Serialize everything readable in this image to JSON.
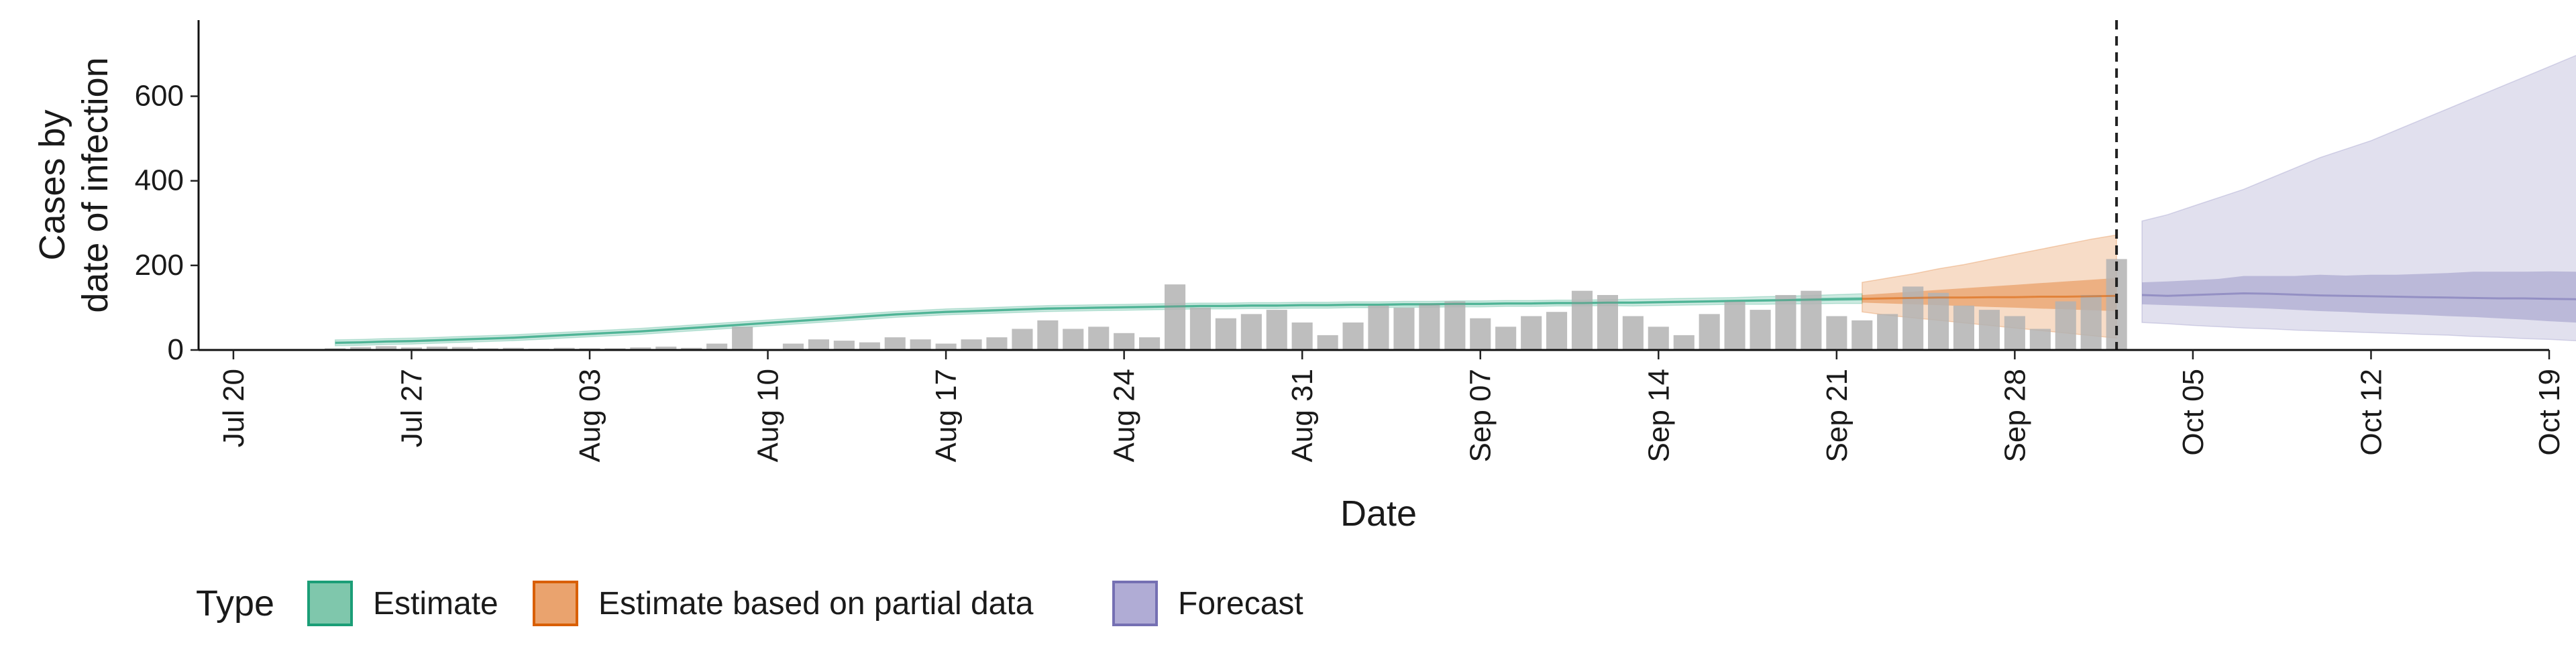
{
  "chart_data": {
    "type": "bar",
    "xlabel": "Date",
    "ylabel_lines": [
      "Cases by",
      "date of infection"
    ],
    "ylim": [
      0,
      780
    ],
    "y_ticks": [
      0,
      200,
      400,
      600
    ],
    "x_ticks": [
      {
        "date": "2020-07-20",
        "label": "Jul 20"
      },
      {
        "date": "2020-07-27",
        "label": "Jul 27"
      },
      {
        "date": "2020-08-03",
        "label": "Aug 03"
      },
      {
        "date": "2020-08-10",
        "label": "Aug 10"
      },
      {
        "date": "2020-08-17",
        "label": "Aug 17"
      },
      {
        "date": "2020-08-24",
        "label": "Aug 24"
      },
      {
        "date": "2020-08-31",
        "label": "Aug 31"
      },
      {
        "date": "2020-09-07",
        "label": "Sep 07"
      },
      {
        "date": "2020-09-14",
        "label": "Sep 14"
      },
      {
        "date": "2020-09-21",
        "label": "Sep 21"
      },
      {
        "date": "2020-09-28",
        "label": "Sep 28"
      },
      {
        "date": "2020-10-05",
        "label": "Oct 05"
      },
      {
        "date": "2020-10-12",
        "label": "Oct 12"
      },
      {
        "date": "2020-10-19",
        "label": "Oct 19"
      }
    ],
    "xlim": [
      "2020-07-19",
      "2020-10-19"
    ],
    "vline_date": "2020-10-02",
    "legend": {
      "title": "Type",
      "position": "bottom",
      "items": [
        {
          "label": "Estimate",
          "fill": "#7fc7ac",
          "stroke": "#1b9e77"
        },
        {
          "label": "Estimate based on partial data",
          "fill": "#eaa36e",
          "stroke": "#d95f02"
        },
        {
          "label": "Forecast",
          "fill": "#b0acd5",
          "stroke": "#7570b3"
        }
      ]
    },
    "reported_cases": {
      "start": "2020-07-24",
      "color": "#b3b3b3",
      "values": [
        4,
        7,
        9,
        6,
        8,
        7,
        4,
        5,
        3,
        5,
        4,
        4,
        6,
        8,
        5,
        15,
        55,
        2,
        15,
        25,
        22,
        18,
        30,
        25,
        15,
        25,
        30,
        50,
        70,
        50,
        55,
        40,
        30,
        155,
        100,
        75,
        85,
        95,
        65,
        35,
        65,
        105,
        100,
        110,
        115,
        75,
        55,
        80,
        90,
        140,
        130,
        80,
        55,
        35,
        85,
        115,
        95,
        130,
        140,
        80,
        70,
        85,
        150,
        135,
        105,
        95,
        80,
        50,
        115,
        130,
        215
      ]
    },
    "series": [
      {
        "name": "Estimate",
        "start": "2020-07-24",
        "color": "#1b9e77",
        "median": [
          17,
          18,
          20,
          21,
          23,
          25,
          27,
          29,
          32,
          35,
          38,
          41,
          44,
          48,
          52,
          56,
          60,
          64,
          68,
          72,
          76,
          80,
          84,
          87,
          90,
          92,
          94,
          96,
          98,
          99,
          100,
          101,
          102,
          103,
          104,
          104,
          105,
          105,
          106,
          106,
          107,
          107,
          108,
          108,
          109,
          109,
          110,
          110,
          111,
          111,
          112,
          112,
          113,
          114,
          115,
          116,
          117,
          118,
          119,
          120,
          121
        ],
        "inner": [
          [
            14,
            20
          ],
          [
            15,
            21
          ],
          [
            17,
            23
          ],
          [
            18,
            24
          ],
          [
            20,
            26
          ],
          [
            22,
            28
          ],
          [
            24,
            30
          ],
          [
            26,
            32
          ],
          [
            29,
            35
          ],
          [
            32,
            38
          ],
          [
            35,
            41
          ],
          [
            38,
            44
          ],
          [
            41,
            47
          ],
          [
            45,
            51
          ],
          [
            49,
            55
          ],
          [
            53,
            59
          ],
          [
            57,
            63
          ],
          [
            61,
            67
          ],
          [
            65,
            71
          ],
          [
            69,
            75
          ],
          [
            73,
            79
          ],
          [
            77,
            83
          ],
          [
            81,
            87
          ],
          [
            84,
            90
          ],
          [
            87,
            93
          ],
          [
            89,
            95
          ],
          [
            91,
            97
          ],
          [
            93,
            99
          ],
          [
            95,
            101
          ],
          [
            96,
            102
          ],
          [
            97,
            103
          ],
          [
            98,
            104
          ],
          [
            99,
            105
          ],
          [
            100,
            106
          ],
          [
            101,
            107
          ],
          [
            101,
            107
          ],
          [
            102,
            108
          ],
          [
            102,
            108
          ],
          [
            103,
            109
          ],
          [
            103,
            109
          ],
          [
            104,
            110
          ],
          [
            104,
            110
          ],
          [
            105,
            111
          ],
          [
            105,
            111
          ],
          [
            106,
            112
          ],
          [
            106,
            112
          ],
          [
            107,
            113
          ],
          [
            107,
            113
          ],
          [
            108,
            114
          ],
          [
            108,
            114
          ],
          [
            109,
            115
          ],
          [
            109,
            115
          ],
          [
            110,
            116
          ],
          [
            111,
            117
          ],
          [
            112,
            118
          ],
          [
            113,
            119
          ],
          [
            114,
            120
          ],
          [
            115,
            121
          ],
          [
            115,
            123
          ],
          [
            116,
            124
          ],
          [
            117,
            125
          ]
        ],
        "outer": [
          [
            10,
            24
          ],
          [
            11,
            25
          ],
          [
            13,
            27
          ],
          [
            14,
            28
          ],
          [
            16,
            30
          ],
          [
            18,
            32
          ],
          [
            20,
            34
          ],
          [
            22,
            36
          ],
          [
            25,
            39
          ],
          [
            28,
            42
          ],
          [
            31,
            45
          ],
          [
            34,
            48
          ],
          [
            37,
            51
          ],
          [
            41,
            55
          ],
          [
            45,
            59
          ],
          [
            49,
            63
          ],
          [
            53,
            67
          ],
          [
            57,
            71
          ],
          [
            61,
            75
          ],
          [
            65,
            79
          ],
          [
            69,
            83
          ],
          [
            73,
            87
          ],
          [
            77,
            91
          ],
          [
            80,
            94
          ],
          [
            83,
            97
          ],
          [
            85,
            99
          ],
          [
            87,
            101
          ],
          [
            89,
            103
          ],
          [
            91,
            105
          ],
          [
            92,
            106
          ],
          [
            93,
            107
          ],
          [
            94,
            108
          ],
          [
            95,
            109
          ],
          [
            96,
            110
          ],
          [
            97,
            111
          ],
          [
            97,
            111
          ],
          [
            98,
            112
          ],
          [
            98,
            112
          ],
          [
            99,
            113
          ],
          [
            99,
            113
          ],
          [
            100,
            114
          ],
          [
            100,
            114
          ],
          [
            101,
            115
          ],
          [
            101,
            115
          ],
          [
            102,
            116
          ],
          [
            102,
            116
          ],
          [
            103,
            117
          ],
          [
            103,
            117
          ],
          [
            104,
            118
          ],
          [
            104,
            118
          ],
          [
            105,
            119
          ],
          [
            104,
            120
          ],
          [
            105,
            121
          ],
          [
            106,
            122
          ],
          [
            107,
            123
          ],
          [
            108,
            124
          ],
          [
            108,
            126
          ],
          [
            109,
            127
          ],
          [
            109,
            129
          ],
          [
            110,
            131
          ],
          [
            110,
            133
          ]
        ]
      },
      {
        "name": "Estimate based on partial data",
        "start": "2020-09-22",
        "color": "#d95f02",
        "median": [
          121,
          122,
          123,
          124,
          124,
          125,
          125,
          126,
          126,
          127,
          128
        ],
        "inner": [
          [
            112,
            130
          ],
          [
            110,
            134
          ],
          [
            108,
            138
          ],
          [
            106,
            142
          ],
          [
            104,
            146
          ],
          [
            102,
            150
          ],
          [
            100,
            154
          ],
          [
            98,
            158
          ],
          [
            96,
            162
          ],
          [
            94,
            166
          ],
          [
            92,
            170
          ]
        ],
        "outer": [
          [
            90,
            160
          ],
          [
            82,
            170
          ],
          [
            76,
            180
          ],
          [
            70,
            192
          ],
          [
            64,
            202
          ],
          [
            58,
            214
          ],
          [
            52,
            226
          ],
          [
            46,
            238
          ],
          [
            40,
            250
          ],
          [
            34,
            262
          ],
          [
            28,
            272
          ]
        ]
      },
      {
        "name": "Forecast",
        "start": "2020-10-03",
        "color": "#7570b3",
        "median": [
          130,
          128,
          130,
          132,
          134,
          133,
          131,
          129,
          128,
          127,
          126,
          125,
          124,
          123,
          122,
          122,
          121,
          120,
          117,
          112,
          107
        ],
        "inner": [
          [
            108,
            160
          ],
          [
            106,
            162
          ],
          [
            104,
            165
          ],
          [
            102,
            168
          ],
          [
            100,
            175
          ],
          [
            98,
            175
          ],
          [
            95,
            175
          ],
          [
            92,
            178
          ],
          [
            90,
            176
          ],
          [
            87,
            178
          ],
          [
            85,
            178
          ],
          [
            83,
            180
          ],
          [
            80,
            182
          ],
          [
            78,
            185
          ],
          [
            75,
            185
          ],
          [
            72,
            185
          ],
          [
            68,
            186
          ],
          [
            65,
            185
          ],
          [
            60,
            183
          ],
          [
            52,
            182
          ],
          [
            45,
            180
          ]
        ],
        "outer": [
          [
            65,
            305
          ],
          [
            62,
            320
          ],
          [
            58,
            340
          ],
          [
            55,
            360
          ],
          [
            52,
            380
          ],
          [
            50,
            405
          ],
          [
            47,
            430
          ],
          [
            45,
            455
          ],
          [
            43,
            475
          ],
          [
            41,
            495
          ],
          [
            39,
            520
          ],
          [
            37,
            545
          ],
          [
            35,
            570
          ],
          [
            32,
            595
          ],
          [
            30,
            620
          ],
          [
            27,
            645
          ],
          [
            25,
            670
          ],
          [
            22,
            695
          ],
          [
            20,
            720
          ],
          [
            17,
            745
          ],
          [
            14,
            740
          ]
        ]
      }
    ]
  }
}
